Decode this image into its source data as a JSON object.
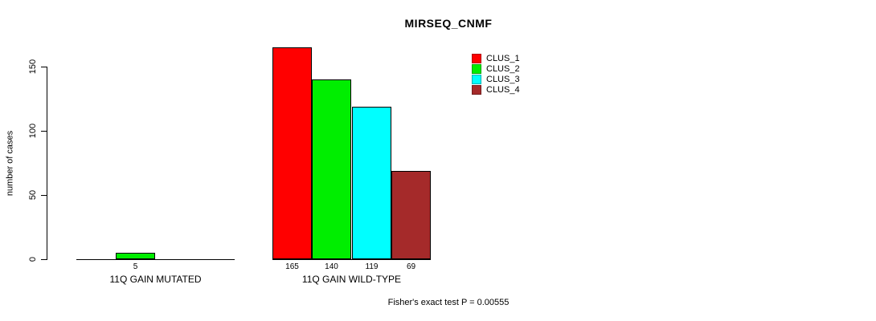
{
  "chart_data": {
    "type": "bar",
    "title": "MIRSEQ_CNMF",
    "ylabel": "number of cases",
    "yticks": [
      0,
      50,
      100,
      150
    ],
    "ylim": [
      0,
      165
    ],
    "grid": false,
    "legend_position": "top-right",
    "legend": [
      {
        "label": "CLUS_1",
        "color": "#ff0000"
      },
      {
        "label": "CLUS_2",
        "color": "#00ee00"
      },
      {
        "label": "CLUS_3",
        "color": "#00ffff"
      },
      {
        "label": "CLUS_4",
        "color": "#a52a2a"
      }
    ],
    "groups": [
      {
        "label": "11Q GAIN MUTATED",
        "slots": 4,
        "bars": [
          {
            "cluster": "CLUS_2",
            "slot": 1,
            "value": 5
          }
        ]
      },
      {
        "label": "11Q GAIN WILD-TYPE",
        "slots": 4,
        "bars": [
          {
            "cluster": "CLUS_1",
            "slot": 0,
            "value": 165
          },
          {
            "cluster": "CLUS_2",
            "slot": 1,
            "value": 140
          },
          {
            "cluster": "CLUS_3",
            "slot": 2,
            "value": 119
          },
          {
            "cluster": "CLUS_4",
            "slot": 3,
            "value": 69
          }
        ]
      }
    ],
    "annotation": "Fisher's exact test P = 0.00555"
  }
}
